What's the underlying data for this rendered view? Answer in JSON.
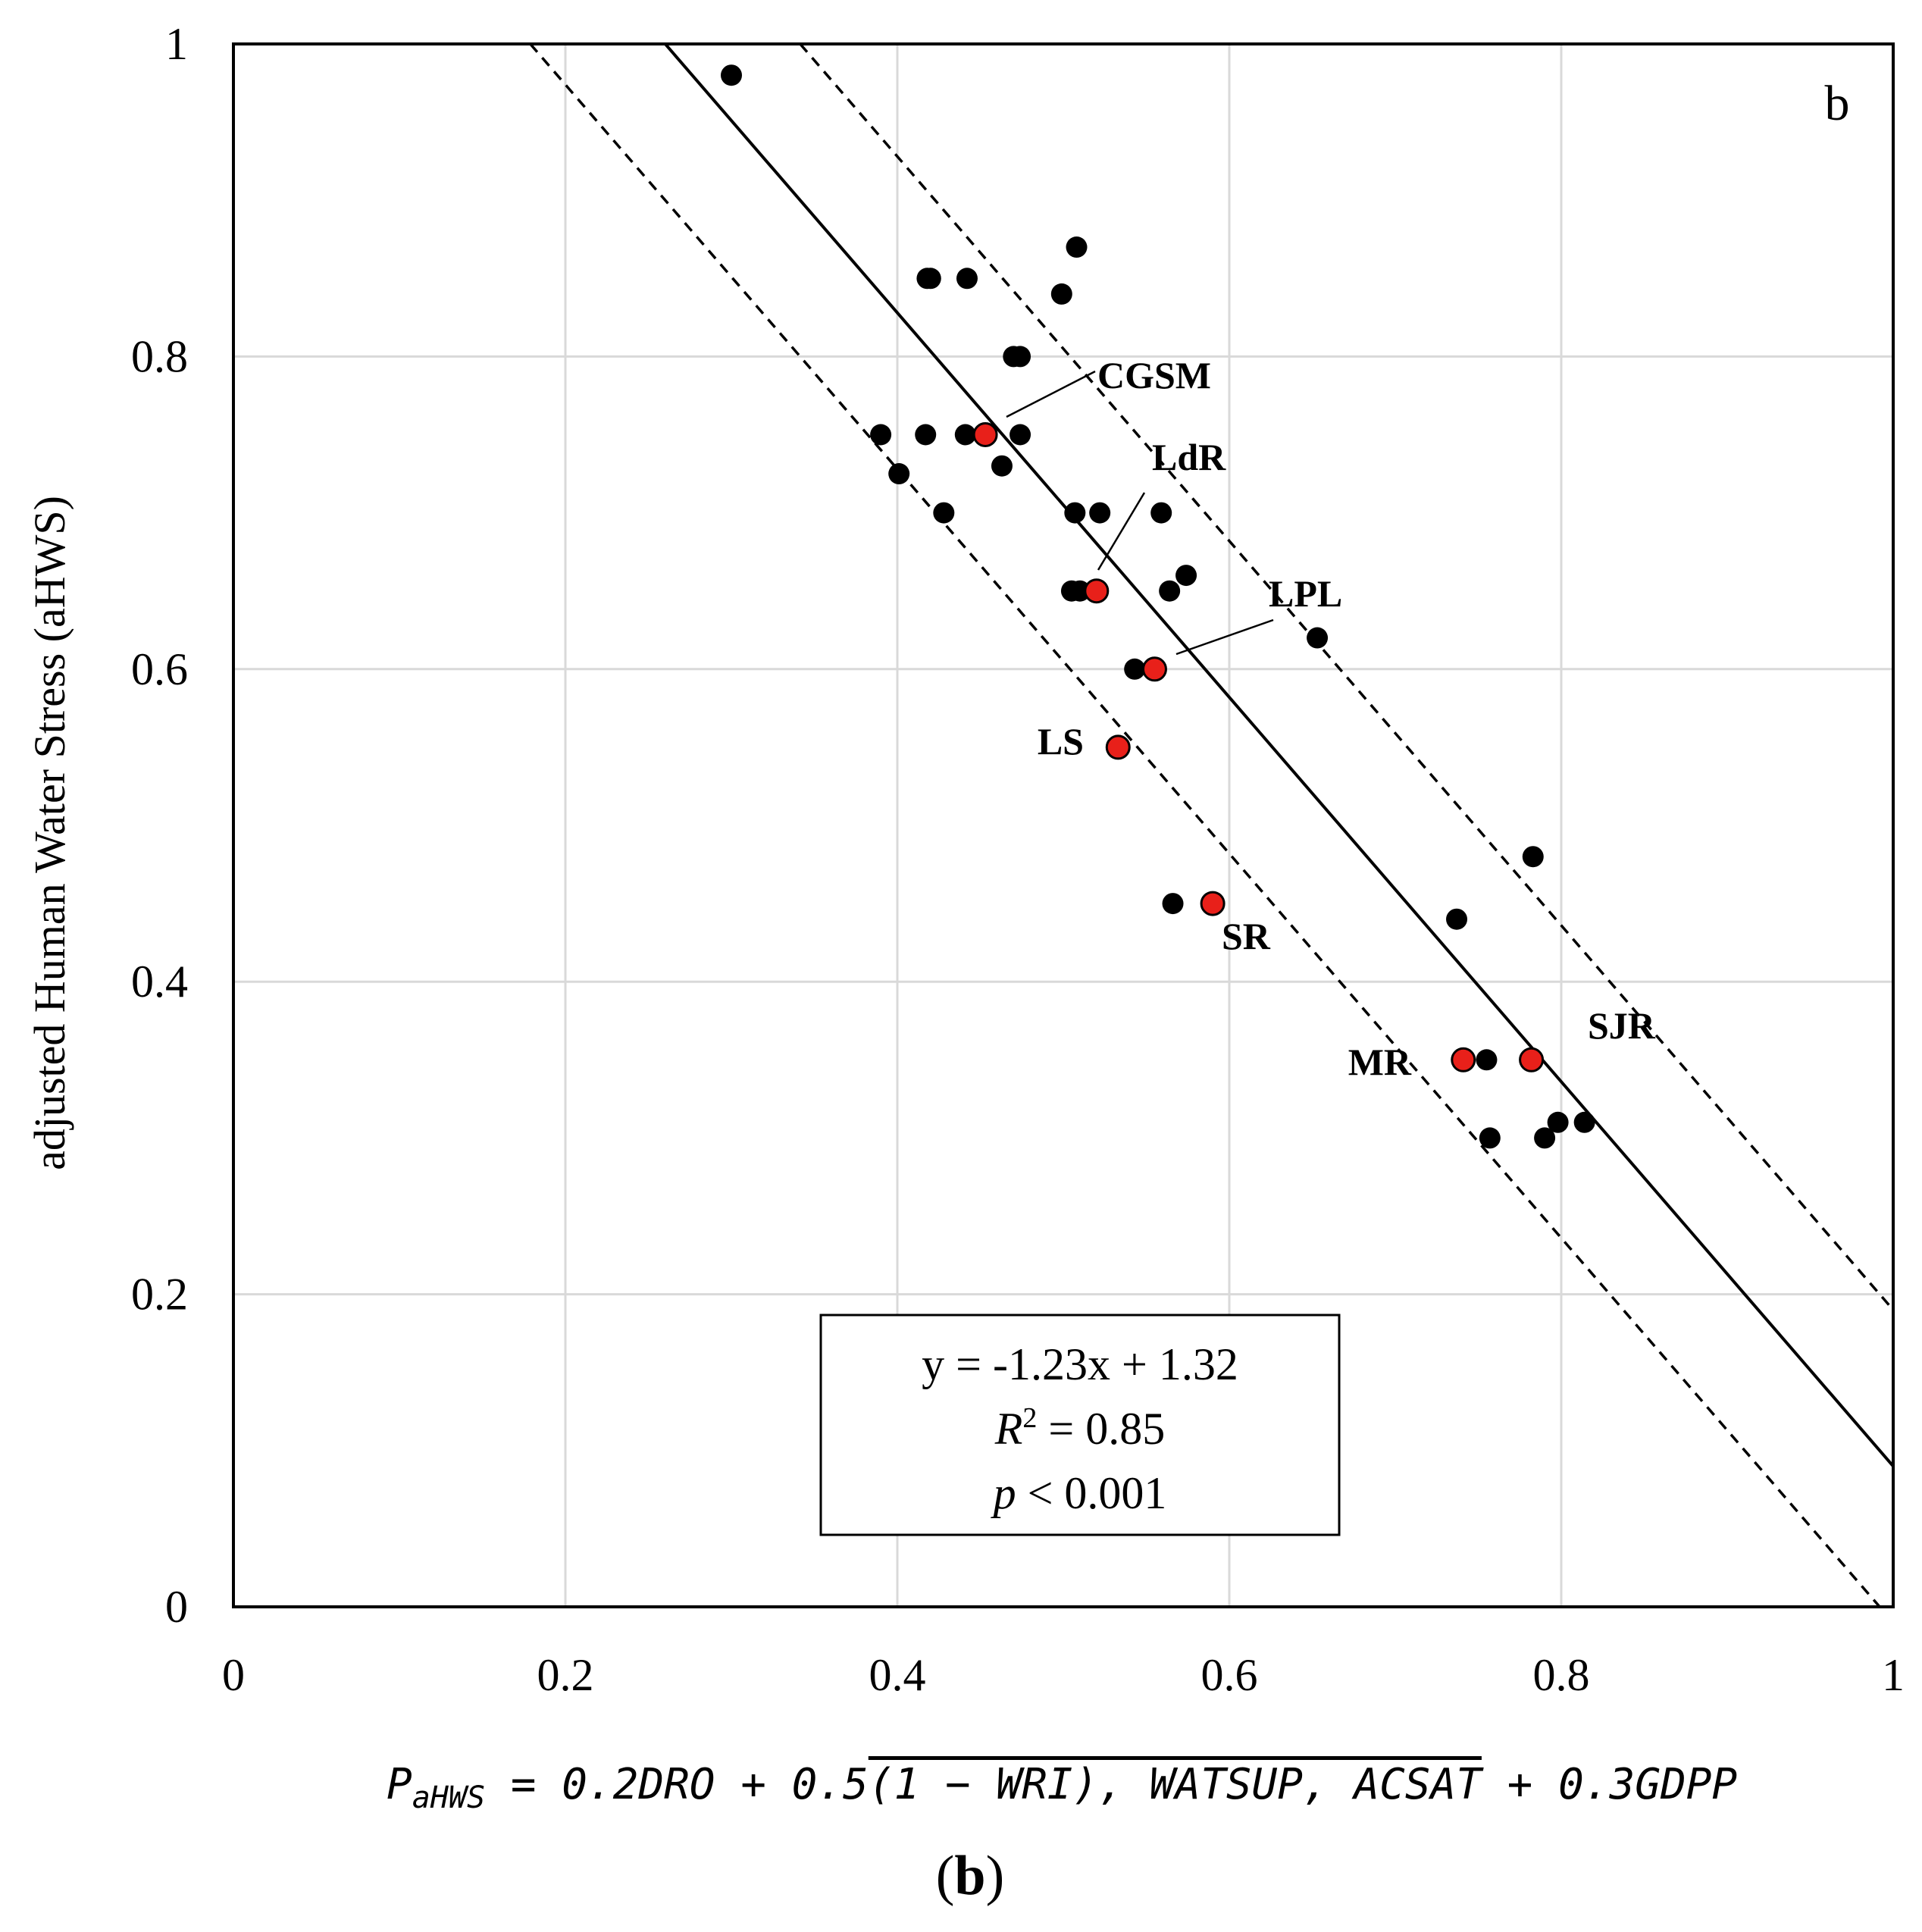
{
  "chart_data": {
    "type": "scatter",
    "panel_letter": "b",
    "ylabel": "adjusted Human Water Stress (aHWS)",
    "xlim": [
      0,
      1
    ],
    "ylim": [
      0,
      1
    ],
    "x_ticks": [
      "0",
      "0.2",
      "0.4",
      "0.6",
      "0.8",
      "1"
    ],
    "y_ticks": [
      "0",
      "0.2",
      "0.4",
      "0.6",
      "0.8",
      "1"
    ],
    "grid": true,
    "regression": {
      "slope": -1.23,
      "intercept": 1.32,
      "upper_offset": 0.1,
      "lower_offset": -0.1
    },
    "stats": {
      "equation": "y = -1.23x + 1.32",
      "r2_label": "R",
      "r2_sup": "2",
      "r2_value": " = 0.85",
      "p_label": "p",
      "p_value": " < 0.001"
    },
    "points": [
      {
        "x": 0.3,
        "y": 0.98
      },
      {
        "x": 0.42,
        "y": 0.85
      },
      {
        "x": 0.418,
        "y": 0.85
      },
      {
        "x": 0.442,
        "y": 0.85
      },
      {
        "x": 0.508,
        "y": 0.87
      },
      {
        "x": 0.499,
        "y": 0.84
      },
      {
        "x": 0.47,
        "y": 0.8
      },
      {
        "x": 0.474,
        "y": 0.8
      },
      {
        "x": 0.39,
        "y": 0.75
      },
      {
        "x": 0.417,
        "y": 0.75
      },
      {
        "x": 0.441,
        "y": 0.75
      },
      {
        "x": 0.474,
        "y": 0.75
      },
      {
        "x": 0.401,
        "y": 0.725
      },
      {
        "x": 0.463,
        "y": 0.73
      },
      {
        "x": 0.428,
        "y": 0.7
      },
      {
        "x": 0.507,
        "y": 0.7
      },
      {
        "x": 0.522,
        "y": 0.7
      },
      {
        "x": 0.559,
        "y": 0.7
      },
      {
        "x": 0.505,
        "y": 0.65
      },
      {
        "x": 0.51,
        "y": 0.65
      },
      {
        "x": 0.564,
        "y": 0.65
      },
      {
        "x": 0.574,
        "y": 0.66
      },
      {
        "x": 0.543,
        "y": 0.6
      },
      {
        "x": 0.653,
        "y": 0.62
      },
      {
        "x": 0.566,
        "y": 0.45
      },
      {
        "x": 0.737,
        "y": 0.44
      },
      {
        "x": 0.783,
        "y": 0.48
      },
      {
        "x": 0.755,
        "y": 0.35
      },
      {
        "x": 0.757,
        "y": 0.3
      },
      {
        "x": 0.79,
        "y": 0.3
      },
      {
        "x": 0.798,
        "y": 0.31
      },
      {
        "x": 0.814,
        "y": 0.31
      }
    ],
    "highlighted": [
      {
        "label": "CGSM",
        "x": 0.453,
        "y": 0.75
      },
      {
        "label": "LdR",
        "x": 0.52,
        "y": 0.65
      },
      {
        "label": "LPL",
        "x": 0.555,
        "y": 0.6
      },
      {
        "label": "LS",
        "x": 0.533,
        "y": 0.55
      },
      {
        "label": "SR",
        "x": 0.59,
        "y": 0.45
      },
      {
        "label": "MR",
        "x": 0.741,
        "y": 0.35
      },
      {
        "label": "SJR",
        "x": 0.782,
        "y": 0.35
      }
    ],
    "colors": {
      "point": "#000000",
      "highlight": "#e8201a",
      "grid": "#d9d9d9",
      "line": "#000000"
    }
  },
  "formula": {
    "prefix": "P",
    "subscript": "aHWS",
    "part1": " = 0.2DRO + 0.5",
    "overlined": "(1 − WRI), WATSUP, ACSAT",
    "part2": " + 0.3GDPP"
  },
  "panel_caption": {
    "open": "(",
    "letter": "b",
    "close": ")"
  }
}
